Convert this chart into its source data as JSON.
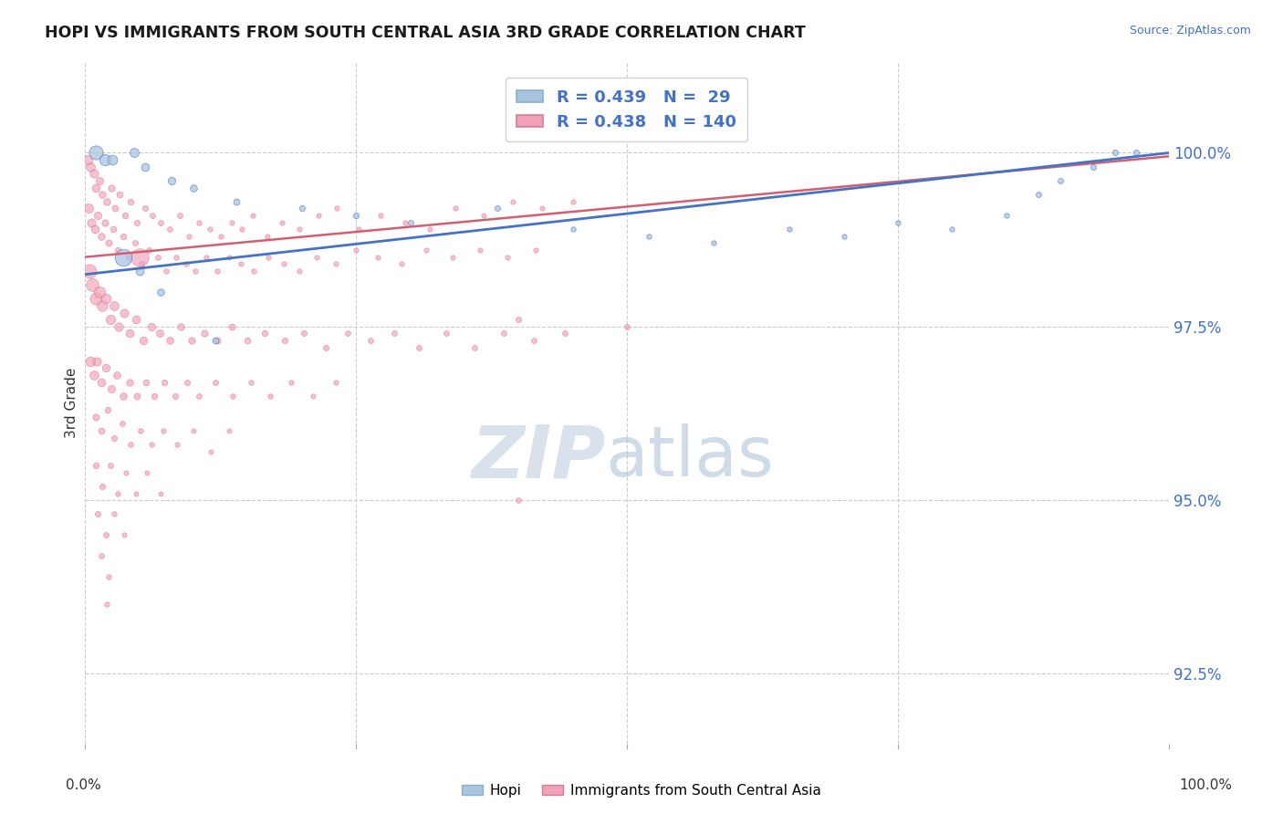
{
  "title": "HOPI VS IMMIGRANTS FROM SOUTH CENTRAL ASIA 3RD GRADE CORRELATION CHART",
  "source": "Source: ZipAtlas.com",
  "ylabel": "3rd Grade",
  "ylabel_right_labels": [
    100.0,
    97.5,
    95.0,
    92.5
  ],
  "xlim": [
    0.0,
    100.0
  ],
  "ylim": [
    91.5,
    101.3
  ],
  "hopi_color": "#aac4e0",
  "immigrants_color": "#f0a0b8",
  "hopi_line_color": "#4472c4",
  "immigrants_line_color": "#d06070",
  "watermark_zip_color": "#c8d8e8",
  "watermark_atlas_color": "#b0c8dc",
  "hopi_line": [
    0,
    100,
    98.25,
    100.0
  ],
  "imm_line": [
    0,
    100,
    98.5,
    99.95
  ],
  "hopi_points": [
    [
      1.0,
      100.0,
      120
    ],
    [
      1.8,
      99.9,
      80
    ],
    [
      2.5,
      99.9,
      60
    ],
    [
      4.5,
      100.0,
      50
    ],
    [
      5.5,
      99.8,
      40
    ],
    [
      8.0,
      99.6,
      35
    ],
    [
      10.0,
      99.5,
      30
    ],
    [
      14.0,
      99.3,
      25
    ],
    [
      20.0,
      99.2,
      20
    ],
    [
      25.0,
      99.1,
      20
    ],
    [
      30.0,
      99.0,
      18
    ],
    [
      38.0,
      99.2,
      18
    ],
    [
      45.0,
      98.9,
      15
    ],
    [
      52.0,
      98.8,
      15
    ],
    [
      58.0,
      98.7,
      15
    ],
    [
      65.0,
      98.9,
      15
    ],
    [
      70.0,
      98.8,
      15
    ],
    [
      75.0,
      99.0,
      15
    ],
    [
      80.0,
      98.9,
      15
    ],
    [
      85.0,
      99.1,
      15
    ],
    [
      88.0,
      99.4,
      18
    ],
    [
      90.0,
      99.6,
      18
    ],
    [
      93.0,
      99.8,
      20
    ],
    [
      95.0,
      100.0,
      20
    ],
    [
      97.0,
      100.0,
      20
    ],
    [
      3.5,
      98.5,
      180
    ],
    [
      5.0,
      98.3,
      40
    ],
    [
      7.0,
      98.0,
      30
    ],
    [
      12.0,
      97.3,
      25
    ]
  ],
  "immigrants_points": [
    [
      0.2,
      99.9,
      60
    ],
    [
      0.5,
      99.8,
      50
    ],
    [
      0.8,
      99.7,
      45
    ],
    [
      1.0,
      99.5,
      40
    ],
    [
      1.3,
      99.6,
      35
    ],
    [
      1.6,
      99.4,
      30
    ],
    [
      2.0,
      99.3,
      30
    ],
    [
      2.4,
      99.5,
      28
    ],
    [
      2.8,
      99.2,
      25
    ],
    [
      3.2,
      99.4,
      25
    ],
    [
      3.7,
      99.1,
      22
    ],
    [
      4.2,
      99.3,
      22
    ],
    [
      4.8,
      99.0,
      20
    ],
    [
      5.5,
      99.2,
      20
    ],
    [
      6.2,
      99.1,
      18
    ],
    [
      7.0,
      99.0,
      18
    ],
    [
      7.8,
      98.9,
      18
    ],
    [
      8.7,
      99.1,
      18
    ],
    [
      9.6,
      98.8,
      16
    ],
    [
      10.5,
      99.0,
      16
    ],
    [
      11.5,
      98.9,
      16
    ],
    [
      12.5,
      98.8,
      16
    ],
    [
      13.5,
      99.0,
      15
    ],
    [
      14.5,
      98.9,
      15
    ],
    [
      15.5,
      99.1,
      15
    ],
    [
      16.8,
      98.8,
      15
    ],
    [
      18.2,
      99.0,
      15
    ],
    [
      19.8,
      98.9,
      15
    ],
    [
      21.5,
      99.1,
      15
    ],
    [
      23.2,
      99.2,
      15
    ],
    [
      25.2,
      98.9,
      15
    ],
    [
      27.3,
      99.1,
      15
    ],
    [
      29.5,
      99.0,
      15
    ],
    [
      31.8,
      98.9,
      15
    ],
    [
      34.2,
      99.2,
      15
    ],
    [
      36.8,
      99.1,
      15
    ],
    [
      39.5,
      99.3,
      15
    ],
    [
      42.2,
      99.2,
      15
    ],
    [
      45.0,
      99.3,
      15
    ],
    [
      0.3,
      99.2,
      55
    ],
    [
      0.6,
      99.0,
      45
    ],
    [
      0.9,
      98.9,
      40
    ],
    [
      1.2,
      99.1,
      35
    ],
    [
      1.5,
      98.8,
      30
    ],
    [
      1.8,
      99.0,
      28
    ],
    [
      2.2,
      98.7,
      26
    ],
    [
      2.6,
      98.9,
      24
    ],
    [
      3.0,
      98.6,
      22
    ],
    [
      3.5,
      98.8,
      22
    ],
    [
      4.0,
      98.5,
      20
    ],
    [
      4.6,
      98.7,
      20
    ],
    [
      5.2,
      98.4,
      18
    ],
    [
      5.9,
      98.6,
      18
    ],
    [
      6.7,
      98.5,
      18
    ],
    [
      7.5,
      98.3,
      17
    ],
    [
      8.4,
      98.5,
      17
    ],
    [
      9.3,
      98.4,
      17
    ],
    [
      10.2,
      98.3,
      16
    ],
    [
      11.2,
      98.5,
      16
    ],
    [
      12.2,
      98.3,
      16
    ],
    [
      13.3,
      98.5,
      15
    ],
    [
      14.4,
      98.4,
      15
    ],
    [
      15.6,
      98.3,
      15
    ],
    [
      16.9,
      98.5,
      15
    ],
    [
      18.3,
      98.4,
      15
    ],
    [
      19.8,
      98.3,
      15
    ],
    [
      21.4,
      98.5,
      15
    ],
    [
      23.1,
      98.4,
      15
    ],
    [
      25.0,
      98.6,
      15
    ],
    [
      27.0,
      98.5,
      15
    ],
    [
      29.2,
      98.4,
      15
    ],
    [
      31.5,
      98.6,
      15
    ],
    [
      33.9,
      98.5,
      15
    ],
    [
      36.4,
      98.6,
      15
    ],
    [
      39.0,
      98.5,
      15
    ],
    [
      41.6,
      98.6,
      15
    ],
    [
      0.4,
      98.3,
      120
    ],
    [
      0.7,
      98.1,
      100
    ],
    [
      1.0,
      97.9,
      90
    ],
    [
      1.3,
      98.0,
      80
    ],
    [
      1.6,
      97.8,
      70
    ],
    [
      1.9,
      97.9,
      60
    ],
    [
      2.3,
      97.6,
      55
    ],
    [
      2.7,
      97.8,
      50
    ],
    [
      3.1,
      97.5,
      45
    ],
    [
      3.6,
      97.7,
      45
    ],
    [
      4.1,
      97.4,
      40
    ],
    [
      4.7,
      97.6,
      40
    ],
    [
      5.4,
      97.3,
      38
    ],
    [
      6.1,
      97.5,
      36
    ],
    [
      6.9,
      97.4,
      34
    ],
    [
      7.8,
      97.3,
      32
    ],
    [
      8.8,
      97.5,
      30
    ],
    [
      9.8,
      97.3,
      28
    ],
    [
      11.0,
      97.4,
      28
    ],
    [
      12.2,
      97.3,
      26
    ],
    [
      13.5,
      97.5,
      26
    ],
    [
      15.0,
      97.3,
      24
    ],
    [
      16.6,
      97.4,
      22
    ],
    [
      18.4,
      97.3,
      20
    ],
    [
      20.2,
      97.4,
      20
    ],
    [
      22.2,
      97.2,
      20
    ],
    [
      24.2,
      97.4,
      18
    ],
    [
      26.3,
      97.3,
      18
    ],
    [
      28.5,
      97.4,
      18
    ],
    [
      30.8,
      97.2,
      18
    ],
    [
      33.3,
      97.4,
      18
    ],
    [
      35.9,
      97.2,
      18
    ],
    [
      38.6,
      97.4,
      18
    ],
    [
      41.4,
      97.3,
      18
    ],
    [
      44.3,
      97.4,
      18
    ],
    [
      0.5,
      97.0,
      60
    ],
    [
      0.8,
      96.8,
      50
    ],
    [
      1.1,
      97.0,
      45
    ],
    [
      1.5,
      96.7,
      40
    ],
    [
      1.9,
      96.9,
      38
    ],
    [
      2.4,
      96.6,
      35
    ],
    [
      2.9,
      96.8,
      32
    ],
    [
      3.5,
      96.5,
      30
    ],
    [
      4.1,
      96.7,
      28
    ],
    [
      4.8,
      96.5,
      26
    ],
    [
      5.6,
      96.7,
      24
    ],
    [
      6.4,
      96.5,
      22
    ],
    [
      7.3,
      96.7,
      22
    ],
    [
      8.3,
      96.5,
      20
    ],
    [
      9.4,
      96.7,
      20
    ],
    [
      10.5,
      96.5,
      18
    ],
    [
      12.0,
      96.7,
      18
    ],
    [
      13.6,
      96.5,
      16
    ],
    [
      15.3,
      96.7,
      16
    ],
    [
      17.1,
      96.5,
      16
    ],
    [
      19.0,
      96.7,
      15
    ],
    [
      21.0,
      96.5,
      15
    ],
    [
      23.1,
      96.7,
      15
    ],
    [
      1.0,
      96.2,
      28
    ],
    [
      1.5,
      96.0,
      25
    ],
    [
      2.1,
      96.3,
      22
    ],
    [
      2.7,
      95.9,
      20
    ],
    [
      3.4,
      96.1,
      18
    ],
    [
      4.2,
      95.8,
      17
    ],
    [
      5.1,
      96.0,
      16
    ],
    [
      6.1,
      95.8,
      15
    ],
    [
      7.2,
      96.0,
      15
    ],
    [
      8.5,
      95.8,
      15
    ],
    [
      10.0,
      96.0,
      14
    ],
    [
      11.6,
      95.7,
      14
    ],
    [
      13.3,
      96.0,
      14
    ],
    [
      1.0,
      95.5,
      22
    ],
    [
      1.6,
      95.2,
      20
    ],
    [
      2.3,
      95.5,
      18
    ],
    [
      3.0,
      95.1,
      16
    ],
    [
      3.8,
      95.4,
      15
    ],
    [
      4.7,
      95.1,
      14
    ],
    [
      5.7,
      95.4,
      14
    ],
    [
      7.0,
      95.1,
      13
    ],
    [
      1.2,
      94.8,
      20
    ],
    [
      1.9,
      94.5,
      18
    ],
    [
      2.7,
      94.8,
      16
    ],
    [
      3.6,
      94.5,
      15
    ],
    [
      1.5,
      94.2,
      18
    ],
    [
      2.2,
      93.9,
      16
    ],
    [
      2.0,
      93.5,
      16
    ],
    [
      40.0,
      97.6,
      20
    ],
    [
      50.0,
      97.5,
      18
    ],
    [
      40.0,
      95.0,
      18
    ],
    [
      5.0,
      98.5,
      200
    ]
  ]
}
